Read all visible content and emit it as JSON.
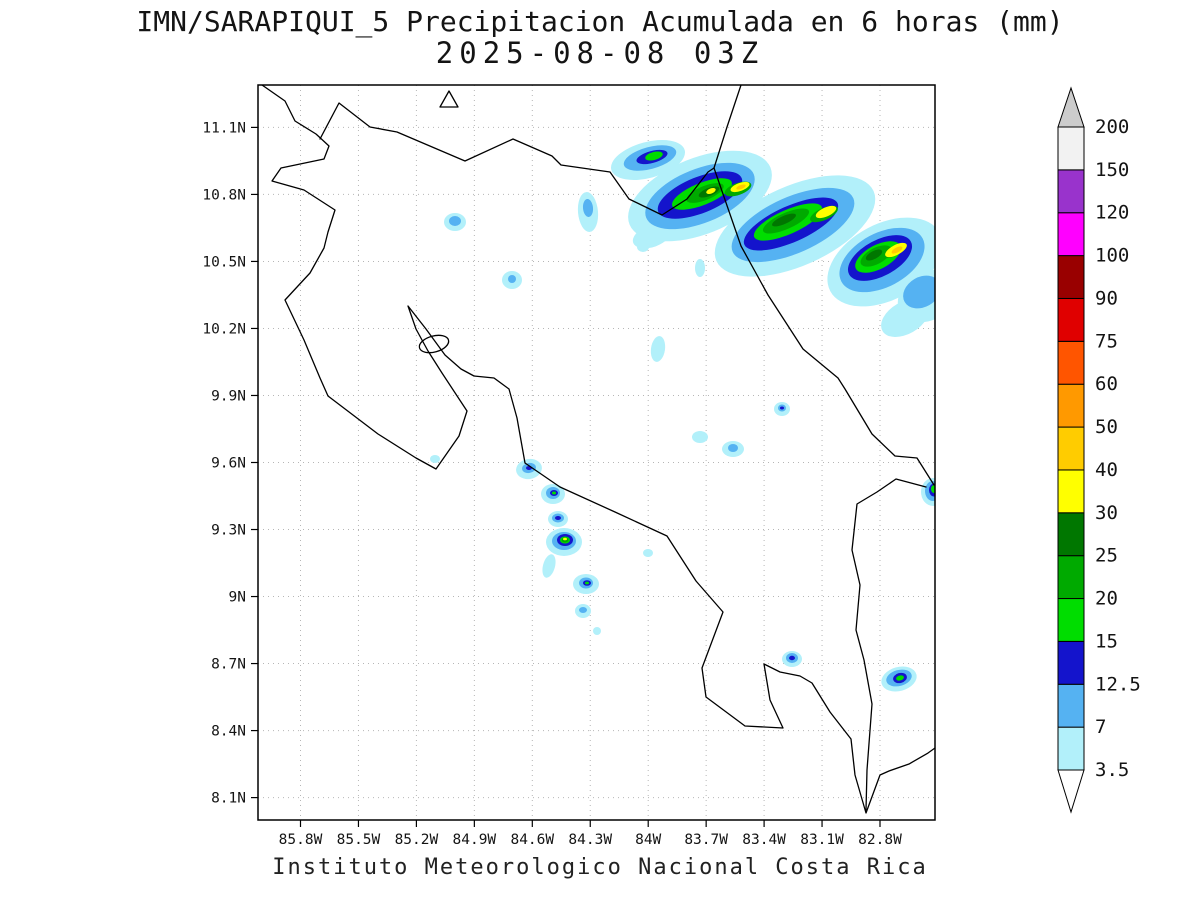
{
  "title": {
    "line1": "IMN/SARAPIQUI_5 Precipitacion Acumulada en 6 horas (mm)",
    "line2": "2025-08-08 03Z"
  },
  "caption": "Instituto Meteorologico Nacional Costa Rica",
  "axes": {
    "lat_labels": [
      "11.1N",
      "10.8N",
      "10.5N",
      "10.2N",
      "9.9N",
      "9.6N",
      "9.3N",
      "9N",
      "8.7N",
      "8.4N",
      "8.1N"
    ],
    "lon_labels": [
      "85.8W",
      "85.5W",
      "85.2W",
      "84.9W",
      "84.6W",
      "84.3W",
      "84W",
      "83.7W",
      "83.4W",
      "83.1W",
      "82.8W"
    ]
  },
  "colorbar": {
    "levels": [
      "3.5",
      "7",
      "12.5",
      "15",
      "20",
      "25",
      "30",
      "40",
      "50",
      "60",
      "75",
      "90",
      "100",
      "120",
      "150",
      "200"
    ],
    "colors": [
      "#b2f0fa",
      "#55b2f2",
      "#1414cc",
      "#00dd00",
      "#00aa00",
      "#007700",
      "#ffff00",
      "#ffcc00",
      "#ff9900",
      "#ff5500",
      "#e00000",
      "#990000",
      "#ff00ff",
      "#9933cc",
      "#f2f2f2"
    ],
    "arrow_top_color": "#cccccc",
    "arrow_bottom_color": "#ffffff"
  },
  "chart_data": {
    "type": "heatmap",
    "title": "IMN/SARAPIQUI_5 Precipitacion Acumulada en 6 horas (mm)",
    "valid_time": "2025-08-08 03Z",
    "units": "mm",
    "region": "Costa Rica",
    "source_caption": "Instituto Meteorologico Nacional Costa Rica",
    "lon_range": [
      -86.0,
      -82.5
    ],
    "lat_range": [
      8.0,
      11.3
    ],
    "lat_ticks": [
      11.1,
      10.8,
      10.5,
      10.2,
      9.9,
      9.6,
      9.3,
      9.0,
      8.7,
      8.4,
      8.1
    ],
    "lon_ticks": [
      -85.8,
      -85.5,
      -85.2,
      -84.9,
      -84.6,
      -84.3,
      -84.0,
      -83.7,
      -83.4,
      -83.1,
      -82.8
    ],
    "contour_levels_mm": [
      3.5,
      7,
      12.5,
      15,
      20,
      25,
      30,
      40,
      50,
      60,
      75,
      90,
      100,
      120,
      150,
      200
    ],
    "band_note": "WNW-ESE convective band along the northern Caribbean coast between 10.3N and 11.0N with embedded 30-50 mm cores",
    "cells": [
      {
        "lon": -83.97,
        "lat": 10.97,
        "peak_mm": 20
      },
      {
        "lon": -83.52,
        "lat": 10.84,
        "peak_mm": 50
      },
      {
        "lon": -83.08,
        "lat": 10.72,
        "peak_mm": 40
      },
      {
        "lon": -82.71,
        "lat": 10.55,
        "peak_mm": 50
      },
      {
        "lon": -84.31,
        "lat": 10.73,
        "peak_mm": 7
      },
      {
        "lon": -85.0,
        "lat": 10.68,
        "peak_mm": 7
      },
      {
        "lon": -84.71,
        "lat": 10.42,
        "peak_mm": 7
      },
      {
        "lon": -83.31,
        "lat": 9.84,
        "peak_mm": 12.5
      },
      {
        "lon": -83.56,
        "lat": 9.66,
        "peak_mm": 7
      },
      {
        "lon": -83.73,
        "lat": 9.71,
        "peak_mm": 3.5
      },
      {
        "lon": -84.62,
        "lat": 9.57,
        "peak_mm": 12.5
      },
      {
        "lon": -84.49,
        "lat": 9.46,
        "peak_mm": 15
      },
      {
        "lon": -84.43,
        "lat": 9.25,
        "peak_mm": 30
      },
      {
        "lon": -84.32,
        "lat": 9.06,
        "peak_mm": 15
      },
      {
        "lon": -84.34,
        "lat": 8.94,
        "peak_mm": 7
      },
      {
        "lon": -84.0,
        "lat": 9.19,
        "peak_mm": 3.5
      },
      {
        "lon": -85.1,
        "lat": 9.62,
        "peak_mm": 3.5
      },
      {
        "lon": -83.25,
        "lat": 8.72,
        "peak_mm": 12.5
      },
      {
        "lon": -82.7,
        "lat": 8.63,
        "peak_mm": 15
      },
      {
        "lon": -82.52,
        "lat": 9.48,
        "peak_mm": 15
      }
    ]
  }
}
